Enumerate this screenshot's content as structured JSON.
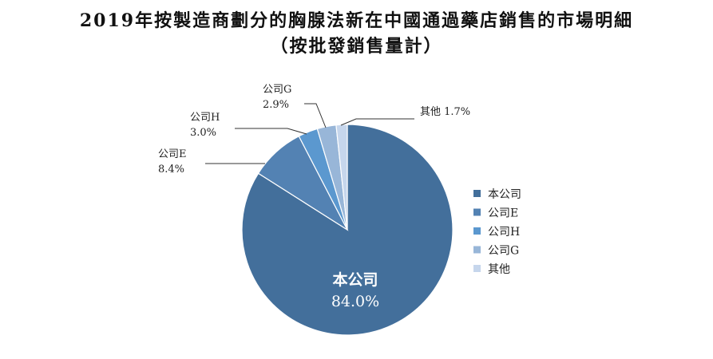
{
  "title": "2019年按製造商劃分的胸腺法新在中國通過藥店銷售的市場明細",
  "subtitle": "（按批發銷售量計）",
  "chart_data": {
    "type": "pie",
    "title": "2019年按製造商劃分的胸腺法新在中國通過藥店銷售的市場明細",
    "subtitle": "（按批發銷售量計）",
    "unit": "%",
    "slices": [
      {
        "label": "本公司",
        "value": 84.0,
        "value_label": "84.0%",
        "color": "#436f9b"
      },
      {
        "label": "公司E",
        "value": 8.4,
        "value_label": "8.4%",
        "color": "#5382b3"
      },
      {
        "label": "公司H",
        "value": 3.0,
        "value_label": "3.0%",
        "color": "#5b98cf"
      },
      {
        "label": "公司G",
        "value": 2.9,
        "value_label": "2.9%",
        "color": "#98b6d8"
      },
      {
        "label": "其他",
        "value": 1.7,
        "value_label": "1.7%",
        "color": "#c6d6ec"
      }
    ],
    "legend": [
      "本公司",
      "公司E",
      "公司H",
      "公司G",
      "其他"
    ],
    "legend_position": "right",
    "start": "12 o'clock, clockwise"
  }
}
